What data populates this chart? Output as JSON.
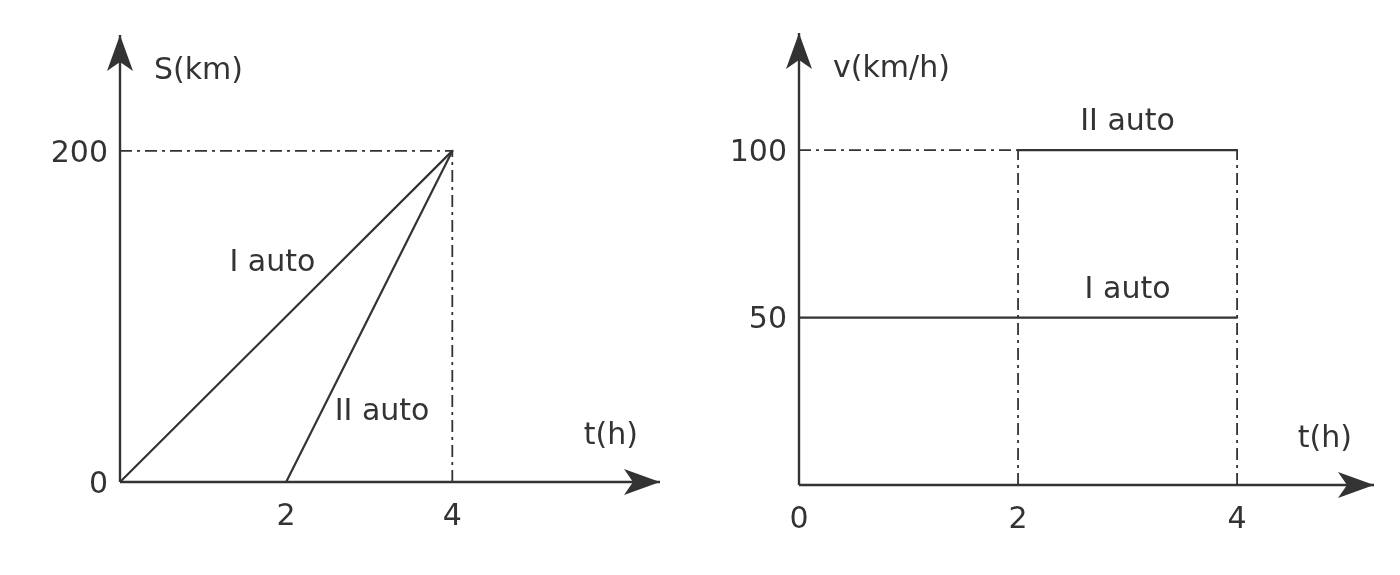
{
  "chart_data": [
    {
      "type": "line",
      "ylabel": "S(km)",
      "xlabel": "t(h)",
      "xlim": [
        0,
        6.5
      ],
      "ylim": [
        0,
        270
      ],
      "xticks": [
        2,
        4
      ],
      "yticks": [
        0,
        200
      ],
      "grid": false,
      "legend": false,
      "marker": "none",
      "line_style": "solid",
      "series": [
        {
          "name": "I auto",
          "color": "#333333",
          "x": [
            0,
            4
          ],
          "values": [
            0,
            200
          ]
        },
        {
          "name": "II auto",
          "color": "#333333",
          "x": [
            2,
            4
          ],
          "values": [
            0,
            200
          ]
        }
      ],
      "ref_lines": [
        {
          "axis": "y",
          "value": 200,
          "line_style": "dashed",
          "color": "#333333"
        },
        {
          "axis": "x",
          "value": 4,
          "line_style": "dashed",
          "color": "#333333"
        }
      ]
    },
    {
      "type": "line",
      "ylabel": "v(km/h)",
      "xlabel": "t(h)",
      "xlim": [
        0,
        5.25
      ],
      "ylim": [
        0,
        135
      ],
      "xticks": [
        0,
        2,
        4
      ],
      "yticks": [
        50,
        100
      ],
      "grid": false,
      "legend": false,
      "marker": "none",
      "line_style": "solid",
      "series": [
        {
          "name": "I auto",
          "color": "#333333",
          "x": [
            0,
            4
          ],
          "values": [
            50,
            50
          ]
        },
        {
          "name": "II auto",
          "color": "#333333",
          "x": [
            2,
            4
          ],
          "values": [
            100,
            100
          ]
        }
      ],
      "ref_lines": [
        {
          "axis": "y",
          "value": 100,
          "line_style": "dashed",
          "color": "#333333"
        },
        {
          "axis": "x",
          "value": 2,
          "line_style": "dashed",
          "color": "#333333"
        },
        {
          "axis": "x",
          "value": 4,
          "line_style": "dashed",
          "color": "#333333"
        }
      ]
    }
  ]
}
